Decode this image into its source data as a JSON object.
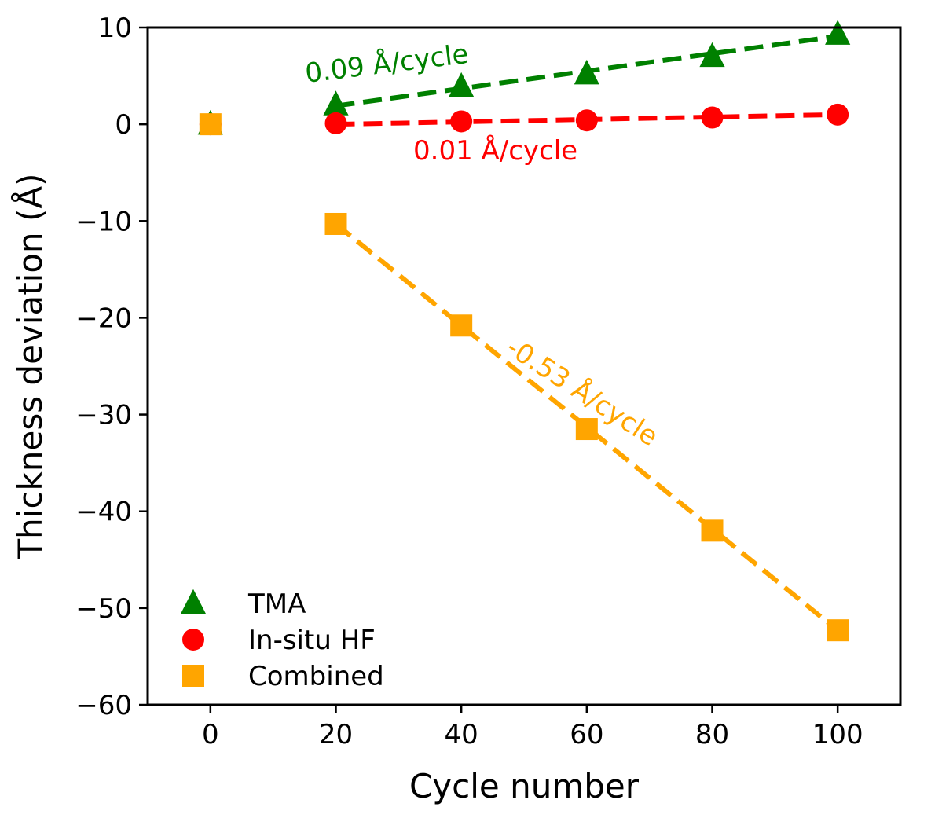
{
  "chart_data": {
    "type": "scatter",
    "title": "",
    "xlabel": "Cycle number",
    "ylabel": "Thickness deviation (Å)",
    "xlim": [
      -10,
      110
    ],
    "ylim": [
      -60,
      10
    ],
    "xticks": [
      0,
      20,
      40,
      60,
      80,
      100
    ],
    "yticks": [
      10,
      0,
      -10,
      -20,
      -30,
      -40,
      -50,
      -60
    ],
    "xtick_labels": [
      "0",
      "20",
      "40",
      "60",
      "80",
      "100"
    ],
    "ytick_labels": [
      "10",
      "0",
      "−10",
      "−20",
      "−30",
      "−40",
      "−50",
      "−60"
    ],
    "grid": false,
    "legend_position": "bottom-left",
    "series": [
      {
        "name": "TMA",
        "color": "#008000",
        "marker": "triangle",
        "x": [
          0,
          20,
          40,
          60,
          80,
          100
        ],
        "y": [
          0,
          2.0,
          3.9,
          5.2,
          7.0,
          9.3
        ],
        "fit": {
          "x": [
            20,
            100
          ],
          "y": [
            1.9,
            9.1
          ]
        },
        "slope_label": "0.09 Å/cycle"
      },
      {
        "name": "In-situ HF",
        "color": "#ff0000",
        "marker": "circle",
        "x": [
          0,
          20,
          40,
          60,
          80,
          100
        ],
        "y": [
          0,
          0.1,
          0.3,
          0.4,
          0.7,
          1.0
        ],
        "fit": {
          "x": [
            20,
            100
          ],
          "y": [
            0.0,
            1.0
          ]
        },
        "slope_label": "0.01 Å/cycle"
      },
      {
        "name": "Combined",
        "color": "#ffa500",
        "marker": "square",
        "x": [
          0,
          20,
          40,
          60,
          80,
          100
        ],
        "y": [
          0,
          -10.3,
          -20.8,
          -31.5,
          -42.0,
          -52.3
        ],
        "fit": {
          "x": [
            20,
            100
          ],
          "y": [
            -10.3,
            -52.3
          ]
        },
        "slope_label": "-0.53 Å/cycle"
      }
    ]
  }
}
